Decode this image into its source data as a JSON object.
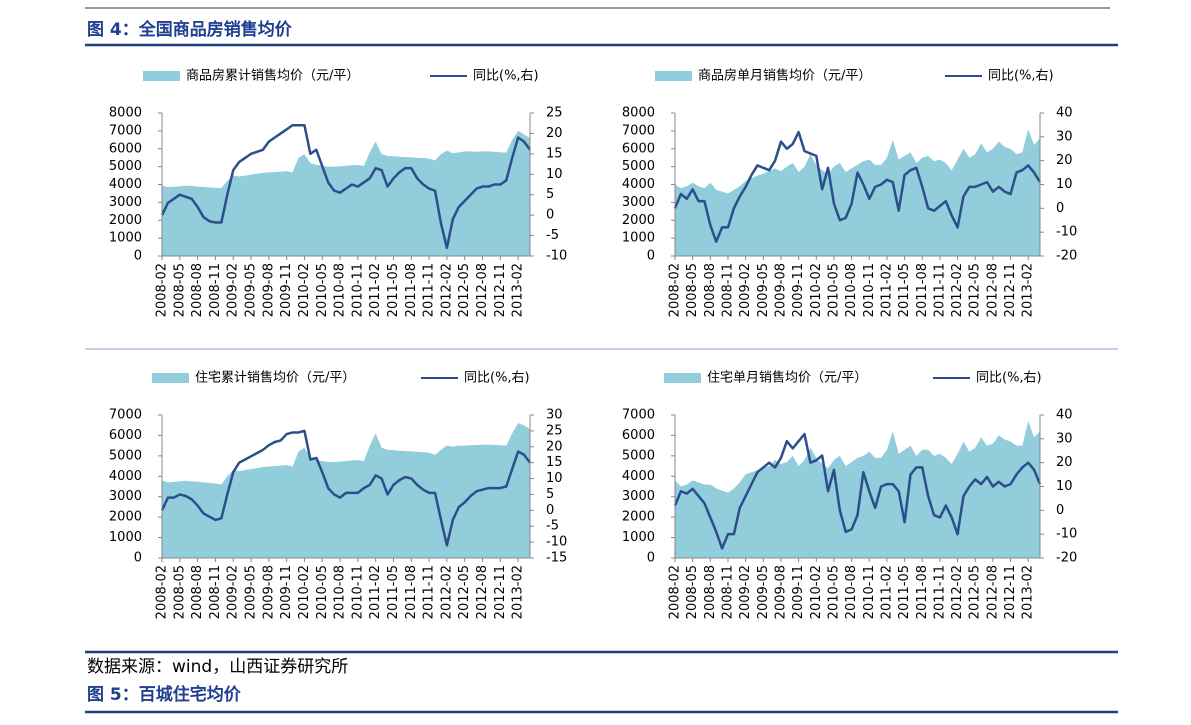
{
  "figure_title": "图 4：全国商品房销售均价",
  "source": "数据来源：wind，山西证券研究所",
  "next_figure_title": "图 5：百城住宅均价",
  "chart_data": [
    {
      "type": "combo",
      "categories": [
        "2008-02",
        null,
        null,
        "2008-05",
        null,
        null,
        "2008-08",
        null,
        null,
        "2008-11",
        null,
        null,
        "2009-02",
        null,
        null,
        "2009-05",
        null,
        null,
        "2009-08",
        null,
        null,
        "2009-11",
        null,
        null,
        "2010-02",
        null,
        null,
        "2010-05",
        null,
        null,
        "2010-08",
        null,
        null,
        "2010-11",
        null,
        null,
        "2011-02",
        null,
        null,
        "2011-05",
        null,
        null,
        "2011-08",
        null,
        null,
        "2011-11",
        null,
        null,
        "2012-02",
        null,
        null,
        "2012-05",
        null,
        null,
        "2012-08",
        null,
        null,
        "2012-11",
        null,
        null,
        "2013-02",
        null,
        null
      ],
      "series": [
        {
          "name": "商品房累计销售均价（元/平）",
          "style": "area",
          "color": "#92cddc",
          "values": [
            3950,
            3850,
            3870,
            3900,
            3930,
            3920,
            3880,
            3860,
            3840,
            3820,
            3800,
            4200,
            4500,
            4450,
            4500,
            4550,
            4600,
            4650,
            4680,
            4700,
            4720,
            4750,
            4680,
            5500,
            5700,
            5200,
            5100,
            5050,
            5000,
            5000,
            5020,
            5050,
            5080,
            5100,
            5030,
            5800,
            6400,
            5700,
            5600,
            5580,
            5550,
            5530,
            5520,
            5500,
            5480,
            5450,
            5350,
            5700,
            5900,
            5750,
            5800,
            5850,
            5850,
            5830,
            5850,
            5850,
            5830,
            5800,
            5790,
            6500,
            7000,
            6800,
            6600
          ]
        },
        {
          "name": "同比(%,右)",
          "style": "line",
          "axis": "y2",
          "color": "#2c4f8c",
          "values": [
            0,
            3,
            4,
            5,
            4.5,
            4,
            2,
            -0.5,
            -1.5,
            -1.8,
            -1.8,
            5,
            11,
            13,
            14,
            15,
            15.5,
            16,
            18,
            19,
            20,
            21,
            22,
            22,
            22,
            15,
            16,
            12,
            8,
            6,
            5.5,
            6.5,
            7.5,
            7,
            8,
            9,
            11.5,
            11,
            7,
            9,
            10.5,
            11.5,
            11.5,
            9,
            7.5,
            6.5,
            6,
            -2,
            -8,
            -1,
            2,
            3.5,
            5,
            6.5,
            7,
            7,
            7.5,
            7.5,
            8.5,
            14,
            19,
            18,
            16
          ]
        }
      ],
      "ylim": [
        0,
        8000
      ],
      "yticks": [
        0,
        1000,
        2000,
        3000,
        4000,
        5000,
        6000,
        7000,
        8000
      ],
      "y2lim": [
        -10,
        25
      ],
      "y2ticks": [
        -10,
        -5,
        0,
        5,
        10,
        15,
        20,
        25
      ]
    },
    {
      "type": "combo",
      "categories": [
        "2008-02",
        null,
        null,
        "2008-05",
        null,
        null,
        "2008-08",
        null,
        null,
        "2008-11",
        null,
        null,
        "2009-02",
        null,
        null,
        "2009-05",
        null,
        null,
        "2009-08",
        null,
        null,
        "2009-11",
        null,
        null,
        "2010-02",
        null,
        null,
        "2010-05",
        null,
        null,
        "2010-08",
        null,
        null,
        "2010-11",
        null,
        null,
        "2011-02",
        null,
        null,
        "2011-05",
        null,
        null,
        "2011-08",
        null,
        null,
        "2011-11",
        null,
        null,
        "2012-02",
        null,
        null,
        "2012-05",
        null,
        null,
        "2012-08",
        null,
        null,
        "2012-11",
        null,
        null,
        "2013-02",
        null,
        null
      ],
      "series": [
        {
          "name": "商品房单月销售均价（元/平）",
          "style": "area",
          "color": "#92cddc",
          "values": [
            4000,
            3800,
            3900,
            4100,
            3900,
            3800,
            4100,
            3700,
            3600,
            3500,
            3700,
            3900,
            4200,
            4350,
            4500,
            4600,
            4750,
            4900,
            4750,
            5000,
            5200,
            4700,
            5000,
            5700,
            5100,
            4800,
            4600,
            5000,
            5200,
            4700,
            4900,
            5100,
            5300,
            5400,
            5100,
            5100,
            5500,
            6500,
            5400,
            5600,
            5800,
            5200,
            5500,
            5600,
            5300,
            5400,
            5200,
            4800,
            5400,
            6000,
            5500,
            5700,
            6300,
            5800,
            6000,
            6400,
            6100,
            6000,
            5700,
            5800,
            7100,
            6200,
            6600
          ]
        },
        {
          "name": "同比(%,右)",
          "style": "line",
          "axis": "y2",
          "color": "#2c4f8c",
          "values": [
            0,
            6,
            4,
            8,
            3,
            3,
            -7,
            -14,
            -8,
            -8,
            0,
            5,
            9,
            14,
            18,
            17,
            16,
            20,
            28,
            25,
            27,
            32,
            24,
            23,
            22,
            8,
            17,
            2,
            -5,
            -4,
            2,
            15,
            10,
            4,
            9,
            10,
            12,
            11,
            -1,
            14,
            16,
            17,
            9,
            0,
            -1,
            1,
            3,
            -3,
            -8,
            5,
            9,
            9,
            10,
            11,
            7,
            9,
            7,
            6,
            15,
            16,
            18,
            15,
            11
          ]
        }
      ],
      "ylim": [
        0,
        8000
      ],
      "yticks": [
        0,
        1000,
        2000,
        3000,
        4000,
        5000,
        6000,
        7000,
        8000
      ],
      "y2lim": [
        -20,
        40
      ],
      "y2ticks": [
        -20,
        -10,
        0,
        10,
        20,
        30,
        40
      ]
    },
    {
      "type": "combo",
      "categories": [
        "2008-02",
        null,
        null,
        "2008-05",
        null,
        null,
        "2008-08",
        null,
        null,
        "2008-11",
        null,
        null,
        "2009-02",
        null,
        null,
        "2009-05",
        null,
        null,
        "2009-08",
        null,
        null,
        "2009-11",
        null,
        null,
        "2010-02",
        null,
        null,
        "2010-05",
        null,
        null,
        "2010-08",
        null,
        null,
        "2010-11",
        null,
        null,
        "2011-02",
        null,
        null,
        "2011-05",
        null,
        null,
        "2011-08",
        null,
        null,
        "2011-11",
        null,
        null,
        "2012-02",
        null,
        null,
        "2012-05",
        null,
        null,
        "2012-08",
        null,
        null,
        "2012-11",
        null,
        null,
        "2013-02",
        null,
        null
      ],
      "series": [
        {
          "name": "住宅累计销售均价（元/平）",
          "style": "area",
          "color": "#92cddc",
          "values": [
            3800,
            3700,
            3720,
            3750,
            3780,
            3760,
            3730,
            3700,
            3680,
            3650,
            3600,
            4000,
            4300,
            4250,
            4300,
            4350,
            4400,
            4450,
            4480,
            4500,
            4520,
            4550,
            4480,
            5200,
            5400,
            4900,
            4800,
            4750,
            4700,
            4700,
            4720,
            4750,
            4780,
            4800,
            4730,
            5500,
            6100,
            5400,
            5300,
            5280,
            5250,
            5230,
            5220,
            5200,
            5180,
            5150,
            5050,
            5300,
            5500,
            5450,
            5500,
            5500,
            5520,
            5530,
            5550,
            5550,
            5540,
            5520,
            5500,
            6100,
            6600,
            6500,
            6300
          ]
        },
        {
          "name": "同比(%,右)",
          "style": "line",
          "axis": "y2",
          "color": "#2c4f8c",
          "values": [
            0,
            4,
            4,
            5,
            4.5,
            3.5,
            1.5,
            -1,
            -2,
            -3,
            -2.5,
            5,
            12,
            15,
            16,
            17,
            18,
            19,
            20.5,
            21.5,
            22,
            24,
            24.5,
            24.5,
            25,
            16,
            16.5,
            12,
            7,
            5,
            4,
            5.5,
            5.5,
            5.5,
            7,
            8,
            11,
            10,
            5,
            8,
            9.5,
            10.5,
            10,
            8,
            6.5,
            5.5,
            5.5,
            -3,
            -11,
            -3,
            1,
            2.5,
            4.5,
            6,
            6.5,
            7,
            7,
            7,
            7.5,
            13,
            18.5,
            17.5,
            15
          ]
        }
      ],
      "ylim": [
        0,
        7000
      ],
      "yticks": [
        0,
        1000,
        2000,
        3000,
        4000,
        5000,
        6000,
        7000
      ],
      "y2lim": [
        -15,
        30
      ],
      "y2ticks": [
        -15,
        -10,
        -5,
        0,
        5,
        10,
        15,
        20,
        25,
        30
      ]
    },
    {
      "type": "combo",
      "categories": [
        "2008-02",
        null,
        null,
        "2008-05",
        null,
        null,
        "2008-08",
        null,
        null,
        "2008-11",
        null,
        null,
        "2009-02",
        null,
        null,
        "2009-05",
        null,
        null,
        "2009-08",
        null,
        null,
        "2009-11",
        null,
        null,
        "2010-02",
        null,
        null,
        "2010-05",
        null,
        null,
        "2010-08",
        null,
        null,
        "2010-11",
        null,
        null,
        "2011-02",
        null,
        null,
        "2011-05",
        null,
        null,
        "2011-08",
        null,
        null,
        "2011-11",
        null,
        null,
        "2012-02",
        null,
        null,
        "2012-05",
        null,
        null,
        "2012-08",
        null,
        null,
        "2012-11",
        null,
        null,
        "2013-02",
        null,
        null
      ],
      "series": [
        {
          "name": "住宅单月销售均价（元/平）",
          "style": "area",
          "color": "#92cddc",
          "values": [
            3800,
            3500,
            3600,
            3800,
            3700,
            3600,
            3600,
            3400,
            3300,
            3200,
            3400,
            3700,
            4100,
            4200,
            4300,
            4450,
            4500,
            4800,
            4600,
            4700,
            5000,
            4500,
            4800,
            5400,
            4900,
            4600,
            4400,
            4800,
            5000,
            4500,
            4700,
            4900,
            5000,
            5200,
            4900,
            4900,
            5300,
            6200,
            5100,
            5300,
            5500,
            5000,
            5300,
            5300,
            5000,
            5100,
            4900,
            4600,
            5100,
            5700,
            5200,
            5400,
            5900,
            5500,
            5600,
            6000,
            5800,
            5700,
            5500,
            5500,
            6700,
            5900,
            6200
          ]
        },
        {
          "name": "同比(%,右)",
          "style": "line",
          "axis": "y2",
          "color": "#2c4f8c",
          "values": [
            2,
            8,
            7,
            9,
            6,
            3,
            -3,
            -9,
            -16,
            -10,
            -10,
            1,
            6,
            11,
            16,
            18,
            20,
            18,
            22,
            29,
            26,
            29,
            32,
            20,
            21,
            23,
            8,
            17,
            0,
            -9,
            -8,
            -2,
            16,
            8,
            1,
            10,
            11,
            11,
            8,
            -5,
            15,
            18,
            18,
            6,
            -2,
            -3,
            2,
            -3,
            -10,
            6,
            10,
            13,
            11,
            14,
            10,
            12,
            10,
            11,
            15,
            18,
            20,
            17,
            11
          ]
        }
      ],
      "ylim": [
        0,
        7000
      ],
      "yticks": [
        0,
        1000,
        2000,
        3000,
        4000,
        5000,
        6000,
        7000
      ],
      "y2lim": [
        -20,
        40
      ],
      "y2ticks": [
        -20,
        -10,
        0,
        10,
        20,
        30,
        40
      ]
    }
  ]
}
